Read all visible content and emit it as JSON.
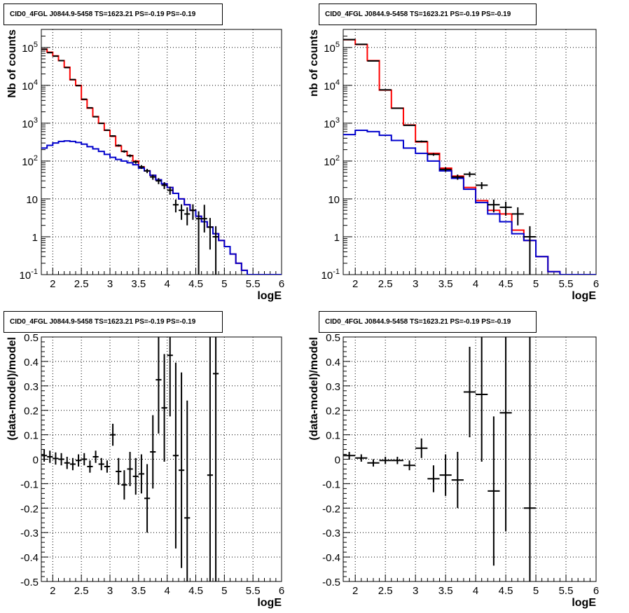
{
  "chart_data": [
    {
      "type": "histogram",
      "title": "CID0_4FGL J0844.9-5458 TS=1623.21 PS=-0.19 PS=-0.19",
      "xlabel": "logE",
      "ylabel": "Nb of counts",
      "xlim": [
        1.8,
        6.0
      ],
      "ylim": [
        0.1,
        300000
      ],
      "yscale": "log",
      "grid": true,
      "xticks": [
        "2",
        "2.5",
        "3",
        "3.5",
        "4",
        "4.5",
        "5",
        "5.5",
        "6"
      ],
      "yticks": [
        "10^-1",
        "1",
        "10",
        "10^2",
        "10^3",
        "10^4",
        "10^5"
      ],
      "bin_edges": [
        1.8,
        1.9,
        2.0,
        2.1,
        2.2,
        2.3,
        2.4,
        2.5,
        2.6,
        2.7,
        2.8,
        2.9,
        3.0,
        3.1,
        3.2,
        3.3,
        3.4,
        3.5,
        3.6,
        3.7,
        3.8,
        3.9,
        4.0,
        4.1,
        4.2,
        4.3,
        4.4,
        4.5,
        4.6,
        4.7,
        4.8,
        4.9,
        5.0,
        5.1,
        5.2,
        5.3,
        5.4,
        5.5,
        5.6,
        5.7,
        5.8,
        5.9,
        6.0
      ],
      "series": [
        {
          "color": "#ff0000",
          "kind": "step",
          "values": [
            90000,
            75000,
            60000,
            45000,
            30000,
            14000,
            10000,
            4200,
            2500,
            1500,
            1000,
            650,
            450,
            250,
            180,
            140,
            100,
            70,
            55,
            42,
            32,
            25,
            20,
            14,
            10,
            7,
            5,
            3.5,
            2.5,
            1.8,
            1.2,
            0.8,
            0.55,
            0.35,
            0.2,
            0.13,
            0.1,
            0.1,
            0.1,
            0.1,
            0.1,
            0.1
          ]
        },
        {
          "color": "#0000cc",
          "kind": "step",
          "values": [
            220,
            260,
            300,
            330,
            340,
            330,
            310,
            280,
            240,
            210,
            180,
            150,
            125,
            110,
            100,
            90,
            80,
            65,
            55,
            42,
            32,
            25,
            20,
            14,
            10,
            7,
            5,
            3.5,
            2.5,
            1.8,
            1.2,
            0.8,
            0.55,
            0.35,
            0.2,
            0.13,
            0.1,
            0.1,
            0.1,
            0.1,
            0.1,
            0.1
          ]
        },
        {
          "color": "#000000",
          "kind": "points",
          "x": [
            1.85,
            1.95,
            2.05,
            2.15,
            2.25,
            2.35,
            2.45,
            2.55,
            2.65,
            2.75,
            2.85,
            2.95,
            3.05,
            3.15,
            3.25,
            3.35,
            3.45,
            3.55,
            3.65,
            3.75,
            3.85,
            3.95,
            4.05,
            4.15,
            4.25,
            4.35,
            4.45,
            4.55,
            4.65,
            4.75,
            4.85
          ],
          "y": [
            90000,
            73000,
            59000,
            45000,
            29500,
            14200,
            9800,
            4300,
            2550,
            1480,
            990,
            655,
            460,
            258,
            180,
            138,
            95,
            70,
            55,
            38,
            30,
            23,
            17,
            7,
            5,
            4,
            5,
            3,
            3,
            1.8,
            1
          ],
          "err_low": [
            300,
            270,
            240,
            210,
            170,
            120,
            100,
            65,
            50,
            38,
            31,
            25,
            21,
            16,
            13,
            12,
            10,
            8,
            7,
            6,
            5.5,
            4.8,
            4.1,
            2.6,
            2.2,
            2,
            2.2,
            2.99,
            1.7,
            1.34,
            0.99
          ],
          "err_high": [
            300,
            270,
            240,
            210,
            170,
            120,
            100,
            65,
            50,
            38,
            31,
            25,
            21,
            16,
            13,
            12,
            10,
            8,
            7,
            6,
            5.5,
            4.8,
            4.1,
            2.6,
            2.2,
            2,
            2.2,
            1.7,
            4,
            1.34,
            0.9
          ]
        }
      ]
    },
    {
      "type": "histogram",
      "title": "CID0_4FGL J0844.9-5458 TS=1623.21 PS=-0.19 PS=-0.19",
      "xlabel": "logE",
      "ylabel": "nb of counts",
      "xlim": [
        1.8,
        6.0
      ],
      "ylim": [
        0.1,
        300000
      ],
      "yscale": "log",
      "grid": true,
      "xticks": [
        "2",
        "2.5",
        "3",
        "3.5",
        "4",
        "4.5",
        "5",
        "5.5",
        "6"
      ],
      "yticks": [
        "10^-1",
        "1",
        "10",
        "10^2",
        "10^3",
        "10^4",
        "10^5"
      ],
      "bin_edges": [
        1.8,
        2.0,
        2.2,
        2.4,
        2.6,
        2.8,
        3.0,
        3.2,
        3.4,
        3.6,
        3.8,
        4.0,
        4.2,
        4.4,
        4.6,
        4.8,
        5.0,
        5.2,
        5.4,
        5.6,
        5.8,
        6.0
      ],
      "series": [
        {
          "color": "#ff0000",
          "kind": "step",
          "values": [
            160000,
            120000,
            45000,
            7500,
            2500,
            900,
            320,
            160,
            65,
            40,
            20,
            9,
            5,
            4,
            1.5,
            0.8,
            0.3,
            0.12,
            0.1,
            0.1,
            0.1
          ]
        },
        {
          "color": "#0000cc",
          "kind": "step",
          "values": [
            500,
            650,
            600,
            480,
            350,
            220,
            160,
            100,
            55,
            35,
            18,
            8,
            4,
            2.5,
            1.2,
            0.8,
            0.3,
            0.12,
            0.1,
            0.1,
            0.1
          ]
        },
        {
          "color": "#000000",
          "kind": "points",
          "x": [
            1.9,
            2.1,
            2.3,
            2.5,
            2.7,
            2.9,
            3.1,
            3.3,
            3.5,
            3.7,
            3.9,
            4.1,
            4.3,
            4.5,
            4.7,
            4.9
          ],
          "y": [
            162000,
            121000,
            44000,
            7600,
            2480,
            880,
            330,
            150,
            60,
            38,
            45,
            23,
            7,
            6,
            4,
            1
          ],
          "err_low": [
            400,
            350,
            210,
            87,
            50,
            30,
            18,
            12,
            8,
            6,
            7,
            4.8,
            2.6,
            2.4,
            2,
            0.99
          ],
          "err_high": [
            400,
            350,
            210,
            87,
            50,
            30,
            18,
            12,
            8,
            6,
            7,
            4.8,
            2.6,
            2.4,
            2,
            0.9
          ]
        }
      ]
    },
    {
      "type": "scatter",
      "title": "CID0_4FGL J0844.9-5458 TS=1623.21 PS=-0.19 PS=-0.19",
      "xlabel": "logE",
      "ylabel": "(data-model)/model",
      "xlim": [
        1.8,
        6.0
      ],
      "ylim": [
        -0.5,
        0.5
      ],
      "grid": true,
      "xticks": [
        "2",
        "2.5",
        "3",
        "3.5",
        "4",
        "4.5",
        "5",
        "5.5",
        "6"
      ],
      "yticks": [
        "-0.5",
        "-0.4",
        "-0.3",
        "-0.2",
        "-0.1",
        "0",
        "0.1",
        "0.2",
        "0.3",
        "0.4",
        "0.5"
      ],
      "points": {
        "x": [
          1.85,
          1.95,
          2.05,
          2.15,
          2.25,
          2.35,
          2.45,
          2.55,
          2.65,
          2.75,
          2.85,
          2.95,
          3.05,
          3.15,
          3.25,
          3.35,
          3.45,
          3.55,
          3.65,
          3.75,
          3.85,
          3.95,
          4.05,
          4.15,
          4.25,
          4.35,
          4.75,
          4.85
        ],
        "y": [
          0.015,
          0.01,
          0.003,
          0.0,
          -0.015,
          -0.02,
          -0.005,
          -0.0,
          -0.03,
          0.01,
          -0.02,
          -0.03,
          0.1,
          -0.05,
          -0.105,
          -0.04,
          -0.07,
          -0.06,
          -0.16,
          0.03,
          0.325,
          0.21,
          0.425,
          0.015,
          -0.045,
          -0.24,
          -0.065,
          0.35
        ],
        "err": [
          0.025,
          0.025,
          0.025,
          0.025,
          0.025,
          0.025,
          0.025,
          0.025,
          0.025,
          0.025,
          0.025,
          0.025,
          0.045,
          0.055,
          0.06,
          0.07,
          0.075,
          0.08,
          0.14,
          0.15,
          0.22,
          0.22,
          0.25,
          0.38,
          0.4,
          0.48,
          0.7,
          0.9
        ],
        "xerr": 0.05
      }
    },
    {
      "type": "scatter",
      "title": "CID0_4FGL J0844.9-5458 TS=1623.21 PS=-0.19 PS=-0.19",
      "xlabel": "logE",
      "ylabel": "(data-model)/model",
      "xlim": [
        1.8,
        6.0
      ],
      "ylim": [
        -0.5,
        0.5
      ],
      "grid": true,
      "xticks": [
        "2",
        "2.5",
        "3",
        "3.5",
        "4",
        "4.5",
        "5",
        "5.5",
        "6"
      ],
      "yticks": [
        "-0.5",
        "-0.4",
        "-0.3",
        "-0.2",
        "-0.1",
        "0",
        "0.1",
        "0.2",
        "0.3",
        "0.4",
        "0.5"
      ],
      "points": {
        "x": [
          1.9,
          2.1,
          2.3,
          2.5,
          2.7,
          2.9,
          3.1,
          3.3,
          3.5,
          3.7,
          3.9,
          4.1,
          4.3,
          4.5,
          4.9
        ],
        "y": [
          0.015,
          0.005,
          -0.015,
          -0.005,
          -0.005,
          -0.025,
          0.045,
          -0.08,
          -0.065,
          -0.085,
          0.275,
          0.265,
          -0.13,
          0.19,
          -0.2
        ],
        "err": [
          0.015,
          0.015,
          0.015,
          0.015,
          0.015,
          0.02,
          0.04,
          0.055,
          0.085,
          0.115,
          0.185,
          0.275,
          0.305,
          0.485,
          0.9
        ],
        "xerr": 0.1
      }
    }
  ]
}
